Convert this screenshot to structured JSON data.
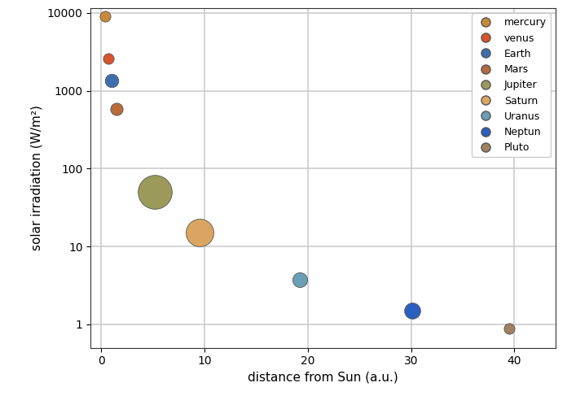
{
  "chart_data": {
    "type": "scatter",
    "x_label": "distance from Sun (a.u.)",
    "y_label": "solar irradiation (W/m²)",
    "series": [
      {
        "name": "mercury",
        "color": "#c8893a",
        "x": [
          0.39
        ],
        "values": [
          9100
        ]
      },
      {
        "name": "venus",
        "color": "#d9532b",
        "x": [
          0.72
        ],
        "values": [
          2600
        ]
      },
      {
        "name": "Earth",
        "color": "#3d6fb0",
        "x": [
          1.0
        ],
        "values": [
          1360
        ]
      },
      {
        "name": "Mars",
        "color": "#b86a3a",
        "x": [
          1.52
        ],
        "values": [
          590
        ]
      },
      {
        "name": "Jupiter",
        "color": "#9c9a5a",
        "x": [
          5.2
        ],
        "values": [
          50
        ]
      },
      {
        "name": "Saturn",
        "color": "#d9a560",
        "x": [
          9.5
        ],
        "values": [
          15
        ]
      },
      {
        "name": "Uranus",
        "color": "#6a9fb5",
        "x": [
          19.2
        ],
        "values": [
          3.7
        ]
      },
      {
        "name": "Neptun",
        "color": "#2a5fc0",
        "x": [
          30.1
        ],
        "values": [
          1.5
        ]
      },
      {
        "name": "Pluto",
        "color": "#a08060",
        "x": [
          39.5
        ],
        "values": [
          0.88
        ]
      }
    ],
    "xlim": [
      -1,
      44
    ],
    "xticks": [
      0,
      10,
      20,
      30,
      40
    ],
    "ylim": [
      0.5,
      11500
    ],
    "yticks": [
      1,
      10,
      100,
      1000,
      10000
    ],
    "log": "y",
    "grid": true,
    "legend": "upper right",
    "marker": "o"
  }
}
